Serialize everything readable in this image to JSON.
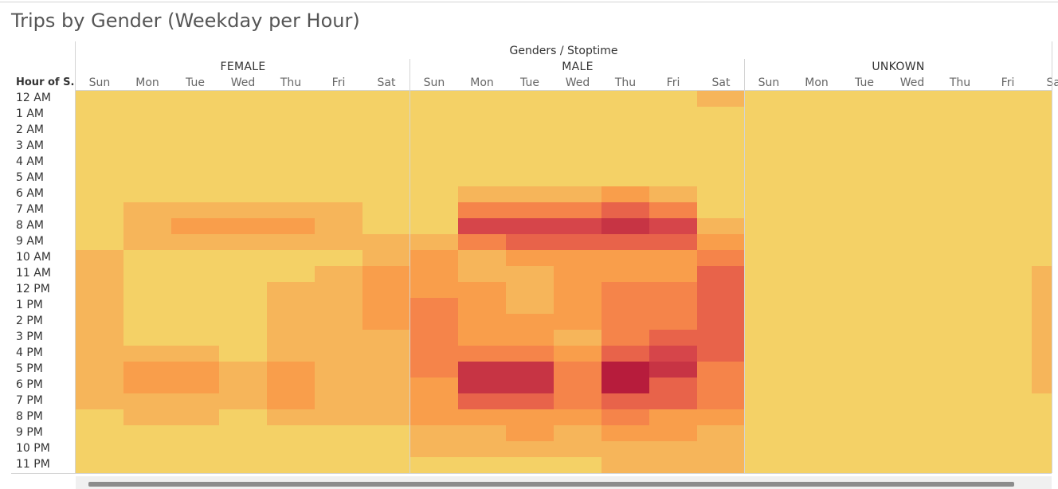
{
  "title": "Trips by Gender (Weekday per Hour)",
  "chart_data": {
    "type": "heatmap",
    "column_axis_title": "Genders / Stoptime",
    "row_axis_title": "Hour of S..",
    "genders": [
      "FEMALE",
      "MALE",
      "UNKOWN"
    ],
    "days": [
      "Sun",
      "Mon",
      "Tue",
      "Wed",
      "Thu",
      "Fri",
      "Sat"
    ],
    "hours": [
      "12 AM",
      "1 AM",
      "2 AM",
      "3 AM",
      "4 AM",
      "5 AM",
      "6 AM",
      "7 AM",
      "8 AM",
      "9 AM",
      "10 AM",
      "11 AM",
      "12 PM",
      "1 PM",
      "2 PM",
      "3 PM",
      "4 PM",
      "5 PM",
      "6 PM",
      "7 PM",
      "8 PM",
      "9 PM",
      "10 PM",
      "11 PM"
    ],
    "scale": [
      "#f4d166",
      "#f6b55a",
      "#f99e4b",
      "#f5844a",
      "#e8634a",
      "#d6454a",
      "#c73444",
      "#b71c3c"
    ],
    "values": {
      "FEMALE": [
        [
          0,
          0,
          0,
          0,
          0,
          0,
          0
        ],
        [
          0,
          0,
          0,
          0,
          0,
          0,
          0
        ],
        [
          0,
          0,
          0,
          0,
          0,
          0,
          0
        ],
        [
          0,
          0,
          0,
          0,
          0,
          0,
          0
        ],
        [
          0,
          0,
          0,
          0,
          0,
          0,
          0
        ],
        [
          0,
          0,
          0,
          0,
          0,
          0,
          0
        ],
        [
          0,
          0,
          0,
          0,
          0,
          0,
          0
        ],
        [
          0,
          1,
          1,
          1,
          1,
          1,
          0
        ],
        [
          0,
          1,
          2,
          2,
          2,
          1,
          0
        ],
        [
          0,
          1,
          1,
          1,
          1,
          1,
          1
        ],
        [
          1,
          0,
          0,
          0,
          0,
          0,
          1
        ],
        [
          1,
          0,
          0,
          0,
          0,
          1,
          2
        ],
        [
          1,
          0,
          0,
          0,
          1,
          1,
          2
        ],
        [
          1,
          0,
          0,
          0,
          1,
          1,
          2
        ],
        [
          1,
          0,
          0,
          0,
          1,
          1,
          2
        ],
        [
          1,
          0,
          0,
          0,
          1,
          1,
          1
        ],
        [
          1,
          1,
          1,
          0,
          1,
          1,
          1
        ],
        [
          1,
          2,
          2,
          1,
          2,
          1,
          1
        ],
        [
          1,
          2,
          2,
          1,
          2,
          1,
          1
        ],
        [
          1,
          1,
          1,
          1,
          2,
          1,
          1
        ],
        [
          0,
          1,
          1,
          0,
          1,
          1,
          1
        ],
        [
          0,
          0,
          0,
          0,
          0,
          0,
          0
        ],
        [
          0,
          0,
          0,
          0,
          0,
          0,
          0
        ],
        [
          0,
          0,
          0,
          0,
          0,
          0,
          0
        ]
      ],
      "MALE": [
        [
          0,
          0,
          0,
          0,
          0,
          0,
          1
        ],
        [
          0,
          0,
          0,
          0,
          0,
          0,
          0
        ],
        [
          0,
          0,
          0,
          0,
          0,
          0,
          0
        ],
        [
          0,
          0,
          0,
          0,
          0,
          0,
          0
        ],
        [
          0,
          0,
          0,
          0,
          0,
          0,
          0
        ],
        [
          0,
          0,
          0,
          0,
          0,
          0,
          0
        ],
        [
          0,
          1,
          1,
          1,
          2,
          1,
          0
        ],
        [
          0,
          3,
          3,
          3,
          4,
          3,
          0
        ],
        [
          0,
          5,
          5,
          5,
          6,
          5,
          1
        ],
        [
          1,
          3,
          4,
          4,
          4,
          4,
          2
        ],
        [
          2,
          1,
          2,
          2,
          2,
          2,
          3
        ],
        [
          2,
          1,
          1,
          2,
          2,
          2,
          4
        ],
        [
          2,
          2,
          1,
          2,
          3,
          3,
          4
        ],
        [
          3,
          2,
          1,
          2,
          3,
          3,
          4
        ],
        [
          3,
          2,
          2,
          2,
          3,
          3,
          4
        ],
        [
          3,
          2,
          2,
          1,
          3,
          4,
          4
        ],
        [
          3,
          3,
          3,
          2,
          4,
          5,
          4
        ],
        [
          3,
          6,
          6,
          3,
          7,
          6,
          3
        ],
        [
          2,
          6,
          6,
          3,
          7,
          4,
          3
        ],
        [
          2,
          4,
          4,
          3,
          4,
          4,
          3
        ],
        [
          2,
          2,
          2,
          2,
          3,
          2,
          2
        ],
        [
          1,
          1,
          2,
          1,
          2,
          2,
          1
        ],
        [
          1,
          1,
          1,
          1,
          1,
          1,
          1
        ],
        [
          0,
          0,
          0,
          0,
          1,
          1,
          1
        ]
      ],
      "UNKOWN": [
        [
          0,
          0,
          0,
          0,
          0,
          0,
          0
        ],
        [
          0,
          0,
          0,
          0,
          0,
          0,
          0
        ],
        [
          0,
          0,
          0,
          0,
          0,
          0,
          0
        ],
        [
          0,
          0,
          0,
          0,
          0,
          0,
          0
        ],
        [
          0,
          0,
          0,
          0,
          0,
          0,
          0
        ],
        [
          0,
          0,
          0,
          0,
          0,
          0,
          0
        ],
        [
          0,
          0,
          0,
          0,
          0,
          0,
          0
        ],
        [
          0,
          0,
          0,
          0,
          0,
          0,
          0
        ],
        [
          0,
          0,
          0,
          0,
          0,
          0,
          0
        ],
        [
          0,
          0,
          0,
          0,
          0,
          0,
          0
        ],
        [
          0,
          0,
          0,
          0,
          0,
          0,
          0
        ],
        [
          0,
          0,
          0,
          0,
          0,
          0,
          1
        ],
        [
          0,
          0,
          0,
          0,
          0,
          0,
          1
        ],
        [
          0,
          0,
          0,
          0,
          0,
          0,
          1
        ],
        [
          0,
          0,
          0,
          0,
          0,
          0,
          1
        ],
        [
          0,
          0,
          0,
          0,
          0,
          0,
          1
        ],
        [
          0,
          0,
          0,
          0,
          0,
          0,
          1
        ],
        [
          0,
          0,
          0,
          0,
          0,
          0,
          1
        ],
        [
          0,
          0,
          0,
          0,
          0,
          0,
          1
        ],
        [
          0,
          0,
          0,
          0,
          0,
          0,
          0
        ],
        [
          0,
          0,
          0,
          0,
          0,
          0,
          0
        ],
        [
          0,
          0,
          0,
          0,
          0,
          0,
          0
        ],
        [
          0,
          0,
          0,
          0,
          0,
          0,
          0
        ],
        [
          0,
          0,
          0,
          0,
          0,
          0,
          0
        ]
      ]
    }
  }
}
